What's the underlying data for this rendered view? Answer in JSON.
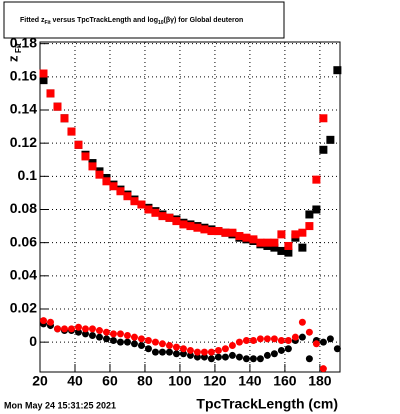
{
  "chart_data": {
    "type": "scatter",
    "title_parts": [
      "Fitted  z",
      "Fit",
      "  versus TpcTrackLength and log",
      "10",
      "(βγ) for Global deuteron"
    ],
    "ylabel_parts": [
      "z",
      "Fit"
    ],
    "xlabel": "TpcTrackLength (cm)",
    "timestamp": "Mon May 24 15:31:25 2021",
    "x": [
      22,
      26,
      30,
      34,
      38,
      42,
      46,
      50,
      54,
      58,
      62,
      66,
      70,
      74,
      78,
      82,
      86,
      90,
      94,
      98,
      102,
      106,
      110,
      114,
      118,
      122,
      126,
      130,
      134,
      138,
      142,
      146,
      150,
      154,
      158,
      162,
      166,
      170,
      174,
      178,
      182,
      186,
      190
    ],
    "series": [
      {
        "color": "#000000",
        "marker": "square",
        "values": [
          0.158,
          0.15,
          0.142,
          0.135,
          0.127,
          0.119,
          0.113,
          0.108,
          0.103,
          0.099,
          0.095,
          0.092,
          0.089,
          0.086,
          0.083,
          0.081,
          0.079,
          0.077,
          0.075,
          0.074,
          0.072,
          0.071,
          0.07,
          0.069,
          0.068,
          0.067,
          0.066,
          0.065,
          0.063,
          0.062,
          0.061,
          0.059,
          0.058,
          0.057,
          0.055,
          0.054,
          0.063,
          0.057,
          0.077,
          0.08,
          0.116,
          0.122,
          0.164
        ]
      },
      {
        "color": "#ff0000",
        "marker": "square",
        "values": [
          0.162,
          0.15,
          0.142,
          0.135,
          0.127,
          0.119,
          0.112,
          0.106,
          0.101,
          0.097,
          0.094,
          0.091,
          0.088,
          0.085,
          0.083,
          0.08,
          0.078,
          0.076,
          0.075,
          0.073,
          0.071,
          0.07,
          0.069,
          0.068,
          0.067,
          0.067,
          0.066,
          0.066,
          0.064,
          0.063,
          0.062,
          0.06,
          0.06,
          0.06,
          0.065,
          0.058,
          0.065,
          0.066,
          0.07,
          0.098,
          0.135,
          null,
          null
        ]
      },
      {
        "color": "#000000",
        "marker": "circle",
        "values": [
          0.011,
          0.01,
          0.008,
          0.007,
          0.007,
          0.006,
          0.005,
          0.004,
          0.003,
          0.002,
          0.001,
          0.0,
          0.0,
          -0.001,
          -0.002,
          -0.004,
          -0.006,
          -0.006,
          -0.006,
          -0.007,
          -0.007,
          -0.008,
          -0.009,
          -0.009,
          -0.01,
          -0.009,
          -0.009,
          -0.008,
          -0.009,
          -0.01,
          -0.01,
          -0.01,
          -0.008,
          -0.007,
          -0.005,
          -0.004,
          0.001,
          0.003,
          -0.01,
          0.001,
          0.0,
          0.002,
          -0.004
        ]
      },
      {
        "color": "#ff0000",
        "marker": "circle",
        "values": [
          0.013,
          0.012,
          0.008,
          0.008,
          0.008,
          0.009,
          0.008,
          0.008,
          0.007,
          0.006,
          0.005,
          0.005,
          0.004,
          0.003,
          0.002,
          0.001,
          0.0,
          -0.001,
          -0.002,
          -0.003,
          -0.004,
          -0.005,
          -0.006,
          -0.006,
          -0.006,
          -0.005,
          -0.004,
          -0.002,
          0.0,
          0.001,
          0.001,
          0.002,
          0.002,
          0.002,
          0.001,
          0.001,
          0.003,
          0.012,
          0.006,
          -0.001,
          -0.016,
          null,
          null
        ]
      }
    ],
    "xlim": [
      20,
      191.5
    ],
    "xticks": [
      20,
      40,
      60,
      80,
      100,
      120,
      140,
      160,
      180
    ],
    "ylim": [
      -0.018,
      0.181
    ],
    "yticks": [
      0,
      0.02,
      0.04,
      0.06,
      0.08,
      0.1,
      0.12,
      0.14,
      0.16,
      0.18
    ],
    "grid": true
  }
}
